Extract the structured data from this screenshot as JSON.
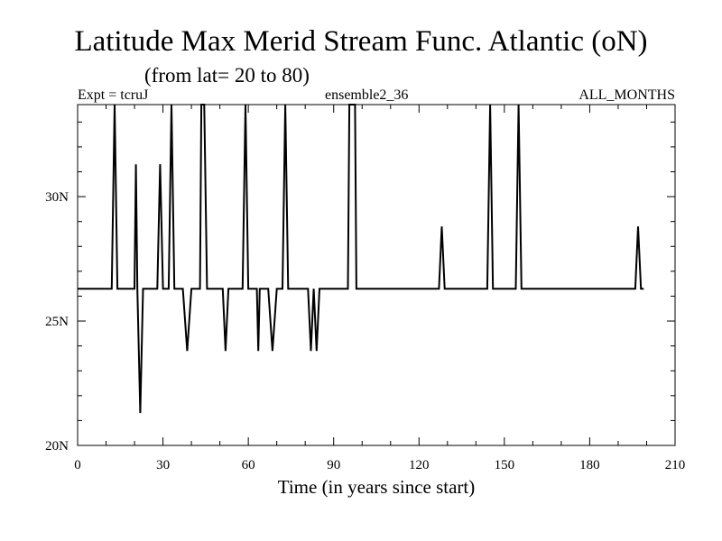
{
  "header": {
    "title": "Latitude Max Merid Stream Func. Atlantic (oN)",
    "subtitle": "(from lat= 20 to 80)",
    "expt": "Expt = tcruJ",
    "ensemble": "ensemble2_36",
    "months": "ALL_MONTHS"
  },
  "chart_data": {
    "type": "line",
    "title": "Latitude Max Merid Stream Func. Atlantic (oN)",
    "xlabel": "Time (in years since start)",
    "ylabel": "",
    "xlim": [
      0,
      210
    ],
    "ylim": [
      20,
      33.7
    ],
    "x_ticks": [
      0,
      30,
      60,
      90,
      120,
      150,
      180,
      210
    ],
    "x_tick_labels": [
      "0",
      "30",
      "60",
      "90",
      "120",
      "150",
      "180",
      "210"
    ],
    "y_ticks": [
      20,
      25,
      30
    ],
    "y_tick_labels": [
      "20N",
      "25N",
      "30N"
    ],
    "grid": false,
    "series": [
      {
        "color": "#000000",
        "points": [
          [
            0,
            26.3
          ],
          [
            12,
            26.3
          ],
          [
            13,
            33.7
          ],
          [
            14,
            26.3
          ],
          [
            20,
            26.3
          ],
          [
            20.5,
            31.3
          ],
          [
            21,
            26.3
          ],
          [
            22,
            21.3
          ],
          [
            23,
            26.3
          ],
          [
            28,
            26.3
          ],
          [
            29,
            31.3
          ],
          [
            30,
            26.3
          ],
          [
            32,
            26.3
          ],
          [
            33,
            33.7
          ],
          [
            34,
            26.3
          ],
          [
            37,
            26.3
          ],
          [
            38.5,
            23.8
          ],
          [
            40,
            26.3
          ],
          [
            43,
            26.3
          ],
          [
            43.5,
            33.7
          ],
          [
            44.5,
            33.7
          ],
          [
            45.5,
            26.3
          ],
          [
            51,
            26.3
          ],
          [
            52,
            23.8
          ],
          [
            53,
            26.3
          ],
          [
            58,
            26.3
          ],
          [
            59,
            33.7
          ],
          [
            60,
            26.3
          ],
          [
            63,
            26.3
          ],
          [
            63.5,
            23.8
          ],
          [
            64,
            26.3
          ],
          [
            67,
            26.3
          ],
          [
            68.5,
            23.8
          ],
          [
            70,
            26.3
          ],
          [
            72,
            26.3
          ],
          [
            73,
            33.7
          ],
          [
            74,
            26.3
          ],
          [
            81,
            26.3
          ],
          [
            82,
            23.8
          ],
          [
            83,
            26.3
          ],
          [
            84,
            23.8
          ],
          [
            85,
            26.3
          ],
          [
            95,
            26.3
          ],
          [
            95.5,
            33.7
          ],
          [
            97.5,
            33.7
          ],
          [
            98,
            26.3
          ],
          [
            127,
            26.3
          ],
          [
            128,
            28.8
          ],
          [
            129,
            26.3
          ],
          [
            144,
            26.3
          ],
          [
            145,
            33.7
          ],
          [
            146,
            26.3
          ],
          [
            154,
            26.3
          ],
          [
            155,
            33.7
          ],
          [
            156,
            26.3
          ],
          [
            196,
            26.3
          ],
          [
            197,
            28.8
          ],
          [
            198,
            26.3
          ],
          [
            199,
            26.3
          ]
        ]
      }
    ]
  }
}
